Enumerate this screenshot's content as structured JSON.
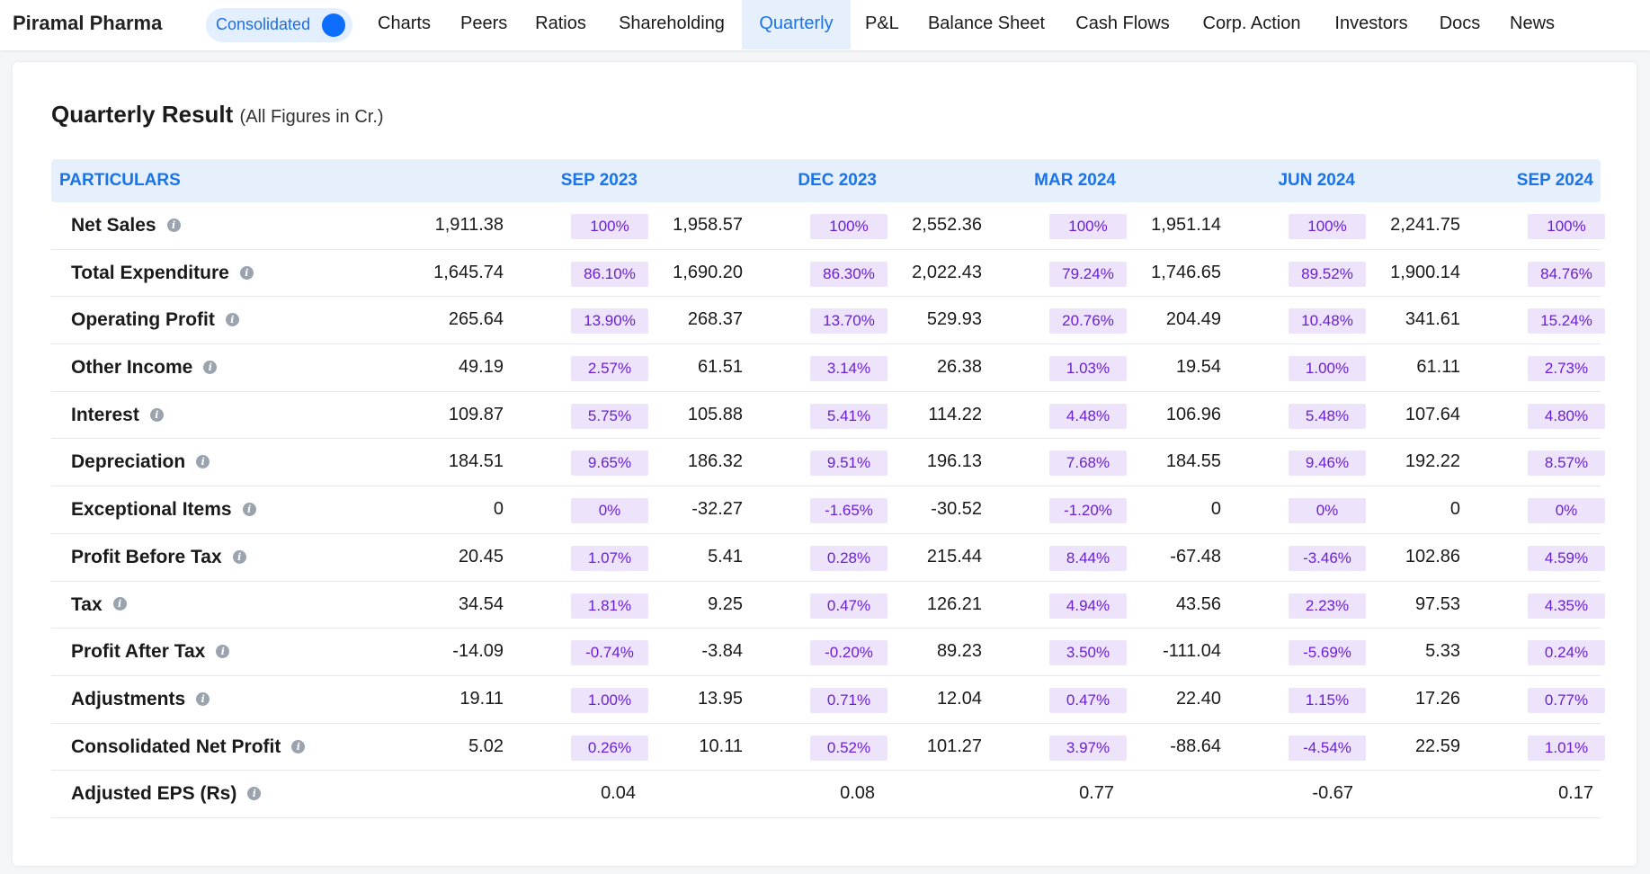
{
  "header": {
    "brand": "Piramal Pharma",
    "toggle_label": "Consolidated",
    "tabs": [
      {
        "label": "Charts",
        "active": false
      },
      {
        "label": "Peers",
        "active": false
      },
      {
        "label": "Ratios",
        "active": false
      },
      {
        "label": "Shareholding",
        "active": false
      },
      {
        "label": "Quarterly",
        "active": true
      },
      {
        "label": "P&L",
        "active": false
      },
      {
        "label": "Balance Sheet",
        "active": false
      },
      {
        "label": "Cash Flows",
        "active": false
      },
      {
        "label": "Corp. Action",
        "active": false
      },
      {
        "label": "Investors",
        "active": false
      },
      {
        "label": "Docs",
        "active": false
      },
      {
        "label": "News",
        "active": false
      }
    ]
  },
  "section": {
    "title": "Quarterly Result",
    "subtitle": "(All Figures in Cr.)"
  },
  "table": {
    "particulars_header": "PARTICULARS",
    "columns": [
      "SEP 2023",
      "DEC 2023",
      "MAR 2024",
      "JUN 2024",
      "SEP 2024"
    ],
    "info_icon": "info-icon",
    "rows": [
      {
        "label": "Net Sales",
        "cells": [
          [
            "1,911.38",
            "100%"
          ],
          [
            "1,958.57",
            "100%"
          ],
          [
            "2,552.36",
            "100%"
          ],
          [
            "1,951.14",
            "100%"
          ],
          [
            "2,241.75",
            "100%"
          ]
        ]
      },
      {
        "label": "Total Expenditure",
        "cells": [
          [
            "1,645.74",
            "86.10%"
          ],
          [
            "1,690.20",
            "86.30%"
          ],
          [
            "2,022.43",
            "79.24%"
          ],
          [
            "1,746.65",
            "89.52%"
          ],
          [
            "1,900.14",
            "84.76%"
          ]
        ]
      },
      {
        "label": "Operating Profit",
        "cells": [
          [
            "265.64",
            "13.90%"
          ],
          [
            "268.37",
            "13.70%"
          ],
          [
            "529.93",
            "20.76%"
          ],
          [
            "204.49",
            "10.48%"
          ],
          [
            "341.61",
            "15.24%"
          ]
        ]
      },
      {
        "label": "Other Income",
        "cells": [
          [
            "49.19",
            "2.57%"
          ],
          [
            "61.51",
            "3.14%"
          ],
          [
            "26.38",
            "1.03%"
          ],
          [
            "19.54",
            "1.00%"
          ],
          [
            "61.11",
            "2.73%"
          ]
        ]
      },
      {
        "label": "Interest",
        "cells": [
          [
            "109.87",
            "5.75%"
          ],
          [
            "105.88",
            "5.41%"
          ],
          [
            "114.22",
            "4.48%"
          ],
          [
            "106.96",
            "5.48%"
          ],
          [
            "107.64",
            "4.80%"
          ]
        ]
      },
      {
        "label": "Depreciation",
        "cells": [
          [
            "184.51",
            "9.65%"
          ],
          [
            "186.32",
            "9.51%"
          ],
          [
            "196.13",
            "7.68%"
          ],
          [
            "184.55",
            "9.46%"
          ],
          [
            "192.22",
            "8.57%"
          ]
        ]
      },
      {
        "label": "Exceptional Items",
        "cells": [
          [
            "0",
            "0%"
          ],
          [
            "-32.27",
            "-1.65%"
          ],
          [
            "-30.52",
            "-1.20%"
          ],
          [
            "0",
            "0%"
          ],
          [
            "0",
            "0%"
          ]
        ]
      },
      {
        "label": "Profit Before Tax",
        "cells": [
          [
            "20.45",
            "1.07%"
          ],
          [
            "5.41",
            "0.28%"
          ],
          [
            "215.44",
            "8.44%"
          ],
          [
            "-67.48",
            "-3.46%"
          ],
          [
            "102.86",
            "4.59%"
          ]
        ]
      },
      {
        "label": "Tax",
        "cells": [
          [
            "34.54",
            "1.81%"
          ],
          [
            "9.25",
            "0.47%"
          ],
          [
            "126.21",
            "4.94%"
          ],
          [
            "43.56",
            "2.23%"
          ],
          [
            "97.53",
            "4.35%"
          ]
        ]
      },
      {
        "label": "Profit After Tax",
        "cells": [
          [
            "-14.09",
            "-0.74%"
          ],
          [
            "-3.84",
            "-0.20%"
          ],
          [
            "89.23",
            "3.50%"
          ],
          [
            "-111.04",
            "-5.69%"
          ],
          [
            "5.33",
            "0.24%"
          ]
        ]
      },
      {
        "label": "Adjustments",
        "cells": [
          [
            "19.11",
            "1.00%"
          ],
          [
            "13.95",
            "0.71%"
          ],
          [
            "12.04",
            "0.47%"
          ],
          [
            "22.40",
            "1.15%"
          ],
          [
            "17.26",
            "0.77%"
          ]
        ]
      },
      {
        "label": "Consolidated Net Profit",
        "cells": [
          [
            "5.02",
            "0.26%"
          ],
          [
            "10.11",
            "0.52%"
          ],
          [
            "101.27",
            "3.97%"
          ],
          [
            "-88.64",
            "-4.54%"
          ],
          [
            "22.59",
            "1.01%"
          ]
        ]
      },
      {
        "label": "Adjusted EPS (Rs)",
        "cells": [
          [
            "0.04",
            ""
          ],
          [
            "0.08",
            ""
          ],
          [
            "0.77",
            ""
          ],
          [
            "-0.67",
            ""
          ],
          [
            "0.17",
            ""
          ]
        ]
      }
    ]
  },
  "colors": {
    "accent": "#1a73e8",
    "header_bg": "#e6f0fc",
    "pct_bg": "#ede4fb",
    "pct_text": "#6a1fd6"
  }
}
